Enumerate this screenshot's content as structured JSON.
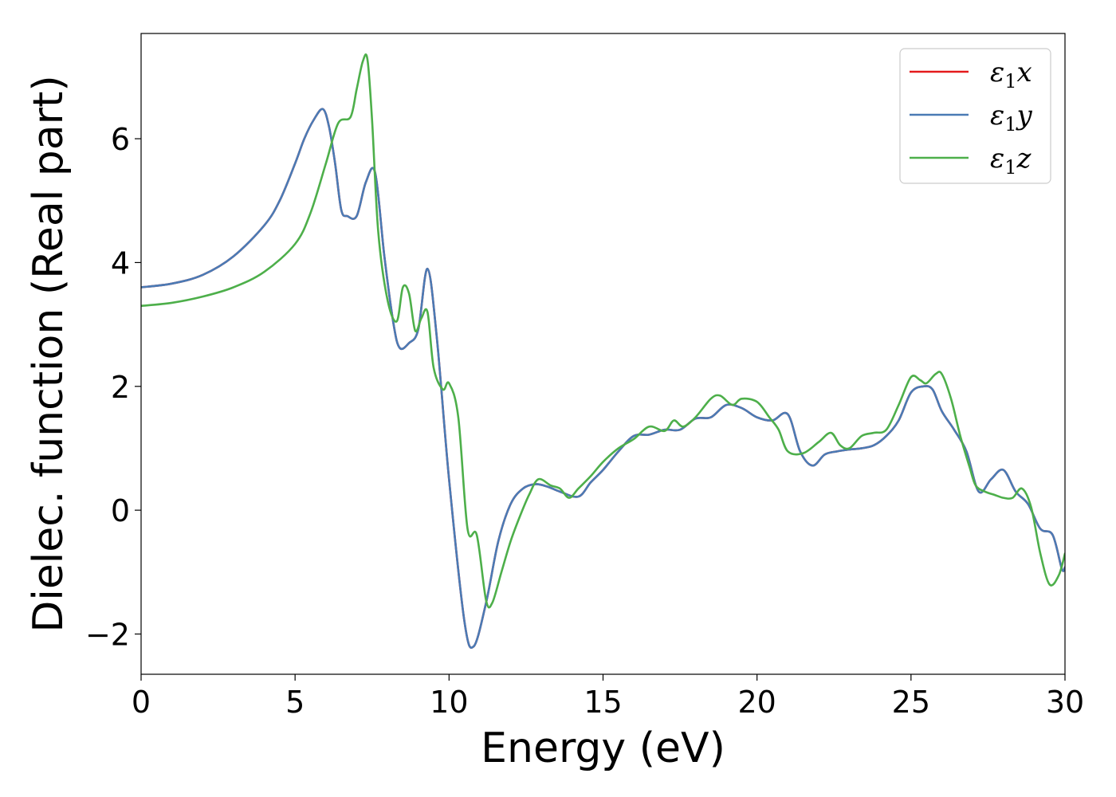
{
  "chart_data": {
    "type": "line",
    "xlabel": "Energy (eV)",
    "ylabel": "Dielec. function (Real part)",
    "xlim": [
      0,
      30
    ],
    "ylim": [
      -2.65,
      7.7
    ],
    "xticks": [
      0,
      5,
      10,
      15,
      20,
      25,
      30
    ],
    "xtick_labels": [
      "0",
      "5",
      "10",
      "15",
      "20",
      "25",
      "30"
    ],
    "yticks": [
      -2,
      0,
      2,
      4,
      6
    ],
    "ytick_labels": [
      "−2",
      "0",
      "2",
      "4",
      "6"
    ],
    "grid": false,
    "legend_position": "top-right",
    "series": [
      {
        "name": "ε1x",
        "legend_base": "ε",
        "legend_sub": "1",
        "legend_var": "x",
        "color": "#e41a1c",
        "x": [
          0,
          1,
          2,
          3,
          4,
          4.5,
          5,
          5.3,
          5.6,
          5.9,
          6.1,
          6.3,
          6.5,
          6.7,
          7.0,
          7.3,
          7.6,
          7.9,
          8.2,
          8.4,
          8.7,
          9.0,
          9.3,
          9.6,
          10.0,
          10.5,
          10.8,
          11.2,
          11.6,
          12.0,
          12.4,
          12.8,
          13.2,
          13.6,
          14.2,
          14.6,
          15.0,
          15.5,
          16.0,
          16.5,
          17.0,
          17.5,
          18.0,
          18.5,
          19.0,
          19.5,
          20.0,
          20.5,
          21.0,
          21.4,
          21.8,
          22.2,
          22.6,
          23.0,
          23.4,
          23.8,
          24.2,
          24.6,
          25.0,
          25.4,
          25.7,
          26.0,
          26.4,
          26.8,
          27.2,
          27.6,
          28.0,
          28.4,
          28.8,
          29.2,
          29.6,
          29.9,
          30.0
        ],
        "y": [
          3.6,
          3.66,
          3.8,
          4.1,
          4.6,
          5.0,
          5.6,
          6.0,
          6.3,
          6.48,
          6.2,
          5.6,
          4.85,
          4.75,
          4.75,
          5.3,
          5.45,
          4.1,
          3.0,
          2.62,
          2.7,
          2.92,
          3.9,
          2.8,
          0.5,
          -1.8,
          -2.2,
          -1.5,
          -0.5,
          0.1,
          0.35,
          0.42,
          0.38,
          0.3,
          0.22,
          0.45,
          0.65,
          0.95,
          1.2,
          1.22,
          1.3,
          1.3,
          1.48,
          1.5,
          1.7,
          1.65,
          1.5,
          1.45,
          1.55,
          0.95,
          0.72,
          0.9,
          0.95,
          0.98,
          1.0,
          1.05,
          1.2,
          1.45,
          1.9,
          2.0,
          1.95,
          1.6,
          1.3,
          0.95,
          0.3,
          0.5,
          0.65,
          0.3,
          0.1,
          -0.3,
          -0.4,
          -0.95,
          -0.92
        ]
      },
      {
        "name": "ε1y",
        "legend_base": "ε",
        "legend_sub": "1",
        "legend_var": "y",
        "color": "#4a7bb5",
        "x": [
          0,
          1,
          2,
          3,
          4,
          4.5,
          5,
          5.3,
          5.6,
          5.9,
          6.1,
          6.3,
          6.5,
          6.7,
          7.0,
          7.3,
          7.6,
          7.9,
          8.2,
          8.4,
          8.7,
          9.0,
          9.3,
          9.6,
          10.0,
          10.5,
          10.8,
          11.2,
          11.6,
          12.0,
          12.4,
          12.8,
          13.2,
          13.6,
          14.2,
          14.6,
          15.0,
          15.5,
          16.0,
          16.5,
          17.0,
          17.5,
          18.0,
          18.5,
          19.0,
          19.5,
          20.0,
          20.5,
          21.0,
          21.4,
          21.8,
          22.2,
          22.6,
          23.0,
          23.4,
          23.8,
          24.2,
          24.6,
          25.0,
          25.4,
          25.7,
          26.0,
          26.4,
          26.8,
          27.2,
          27.6,
          28.0,
          28.4,
          28.8,
          29.2,
          29.6,
          29.9,
          30.0
        ],
        "y": [
          3.6,
          3.66,
          3.8,
          4.1,
          4.6,
          5.0,
          5.6,
          6.0,
          6.3,
          6.48,
          6.2,
          5.6,
          4.85,
          4.75,
          4.75,
          5.3,
          5.45,
          4.1,
          3.0,
          2.62,
          2.7,
          2.92,
          3.9,
          2.8,
          0.5,
          -1.8,
          -2.2,
          -1.5,
          -0.5,
          0.1,
          0.35,
          0.42,
          0.38,
          0.3,
          0.22,
          0.45,
          0.65,
          0.95,
          1.2,
          1.22,
          1.3,
          1.3,
          1.48,
          1.5,
          1.7,
          1.65,
          1.5,
          1.45,
          1.55,
          0.95,
          0.72,
          0.9,
          0.95,
          0.98,
          1.0,
          1.05,
          1.2,
          1.45,
          1.9,
          2.0,
          1.95,
          1.6,
          1.3,
          0.95,
          0.3,
          0.5,
          0.65,
          0.3,
          0.1,
          -0.3,
          -0.4,
          -0.95,
          -0.92
        ]
      },
      {
        "name": "ε1z",
        "legend_base": "ε",
        "legend_sub": "1",
        "legend_var": "z",
        "color": "#4daf4a",
        "x": [
          0,
          1,
          2,
          3,
          4,
          5,
          5.5,
          6.0,
          6.4,
          6.8,
          7.0,
          7.2,
          7.35,
          7.5,
          7.7,
          8.0,
          8.3,
          8.5,
          8.7,
          8.9,
          9.1,
          9.3,
          9.5,
          9.8,
          10.0,
          10.3,
          10.6,
          10.9,
          11.2,
          11.4,
          11.7,
          12.0,
          12.3,
          12.6,
          12.9,
          13.3,
          13.6,
          13.9,
          14.2,
          14.6,
          15.0,
          15.5,
          16.0,
          16.5,
          17.0,
          17.3,
          17.6,
          18.0,
          18.5,
          18.8,
          19.2,
          19.5,
          20.0,
          20.4,
          20.7,
          21.0,
          21.5,
          22.0,
          22.4,
          22.7,
          23.0,
          23.4,
          23.8,
          24.2,
          24.6,
          25.0,
          25.3,
          25.5,
          25.8,
          26.0,
          26.3,
          26.6,
          26.9,
          27.1,
          27.4,
          27.7,
          28.0,
          28.3,
          28.6,
          28.9,
          29.2,
          29.5,
          29.8,
          30.0
        ],
        "y": [
          3.3,
          3.35,
          3.45,
          3.6,
          3.85,
          4.3,
          4.8,
          5.6,
          6.25,
          6.35,
          6.8,
          7.25,
          7.28,
          6.3,
          4.5,
          3.4,
          3.05,
          3.6,
          3.5,
          2.9,
          3.1,
          3.2,
          2.3,
          1.95,
          2.05,
          1.5,
          -0.3,
          -0.4,
          -1.45,
          -1.5,
          -1.0,
          -0.5,
          -0.1,
          0.25,
          0.5,
          0.4,
          0.35,
          0.2,
          0.35,
          0.55,
          0.78,
          1.0,
          1.15,
          1.35,
          1.28,
          1.45,
          1.35,
          1.5,
          1.8,
          1.85,
          1.7,
          1.8,
          1.75,
          1.5,
          1.3,
          0.95,
          0.92,
          1.1,
          1.25,
          1.05,
          1.0,
          1.2,
          1.25,
          1.3,
          1.7,
          2.15,
          2.1,
          2.05,
          2.2,
          2.2,
          1.8,
          1.2,
          0.7,
          0.4,
          0.3,
          0.25,
          0.2,
          0.2,
          0.35,
          0.05,
          -0.7,
          -1.2,
          -1.05,
          -0.7
        ]
      }
    ]
  }
}
